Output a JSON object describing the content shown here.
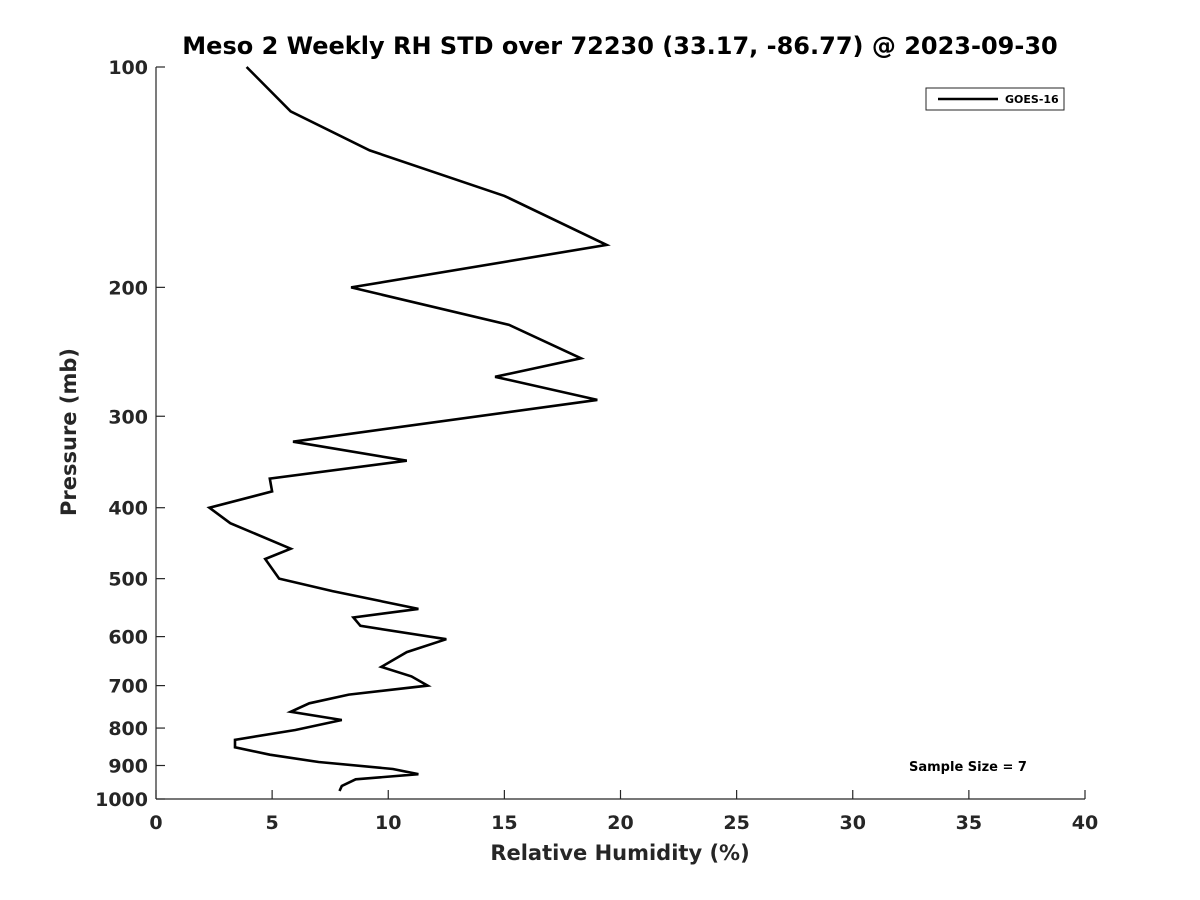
{
  "chart_data": {
    "type": "line",
    "title": "Meso 2 Weekly RH STD over 72230 (33.17, -86.77) @ 2023-09-30",
    "xlabel": "Relative Humidity (%)",
    "ylabel": "Pressure (mb)",
    "xlim": [
      0,
      40
    ],
    "ylim": [
      100,
      1000
    ],
    "y_scale": "log",
    "y_reversed": true,
    "grid": false,
    "legend_position": "top-right",
    "x_ticks": [
      "0",
      "5",
      "10",
      "15",
      "20",
      "25",
      "30",
      "35",
      "40"
    ],
    "y_ticks": [
      "100",
      "200",
      "300",
      "400",
      "500",
      "600",
      "700",
      "800",
      "900",
      "1000"
    ],
    "series": [
      {
        "name": "GOES-16",
        "color": "#000000",
        "x": [
          3.9,
          5.8,
          9.2,
          15.0,
          19.4,
          8.4,
          15.2,
          18.3,
          14.6,
          19.0,
          5.9,
          10.8,
          4.9,
          5.0,
          2.3,
          3.2,
          5.8,
          4.7,
          5.3,
          7.6,
          11.3,
          8.5,
          8.8,
          12.5,
          10.8,
          9.7,
          11.0,
          11.7,
          8.3,
          6.6,
          5.8,
          8.0,
          6.0,
          3.4,
          3.4,
          4.9,
          7.0,
          10.2,
          11.3,
          8.6,
          8.0,
          7.9
        ],
        "y": [
          100,
          115,
          130,
          150,
          175,
          200,
          225,
          250,
          265,
          285,
          325,
          345,
          365,
          380,
          400,
          420,
          455,
          470,
          500,
          520,
          550,
          565,
          580,
          605,
          630,
          660,
          680,
          700,
          720,
          740,
          760,
          780,
          805,
          830,
          850,
          870,
          890,
          910,
          925,
          940,
          960,
          975
        ]
      }
    ],
    "annotation": "Sample Size = 7"
  }
}
